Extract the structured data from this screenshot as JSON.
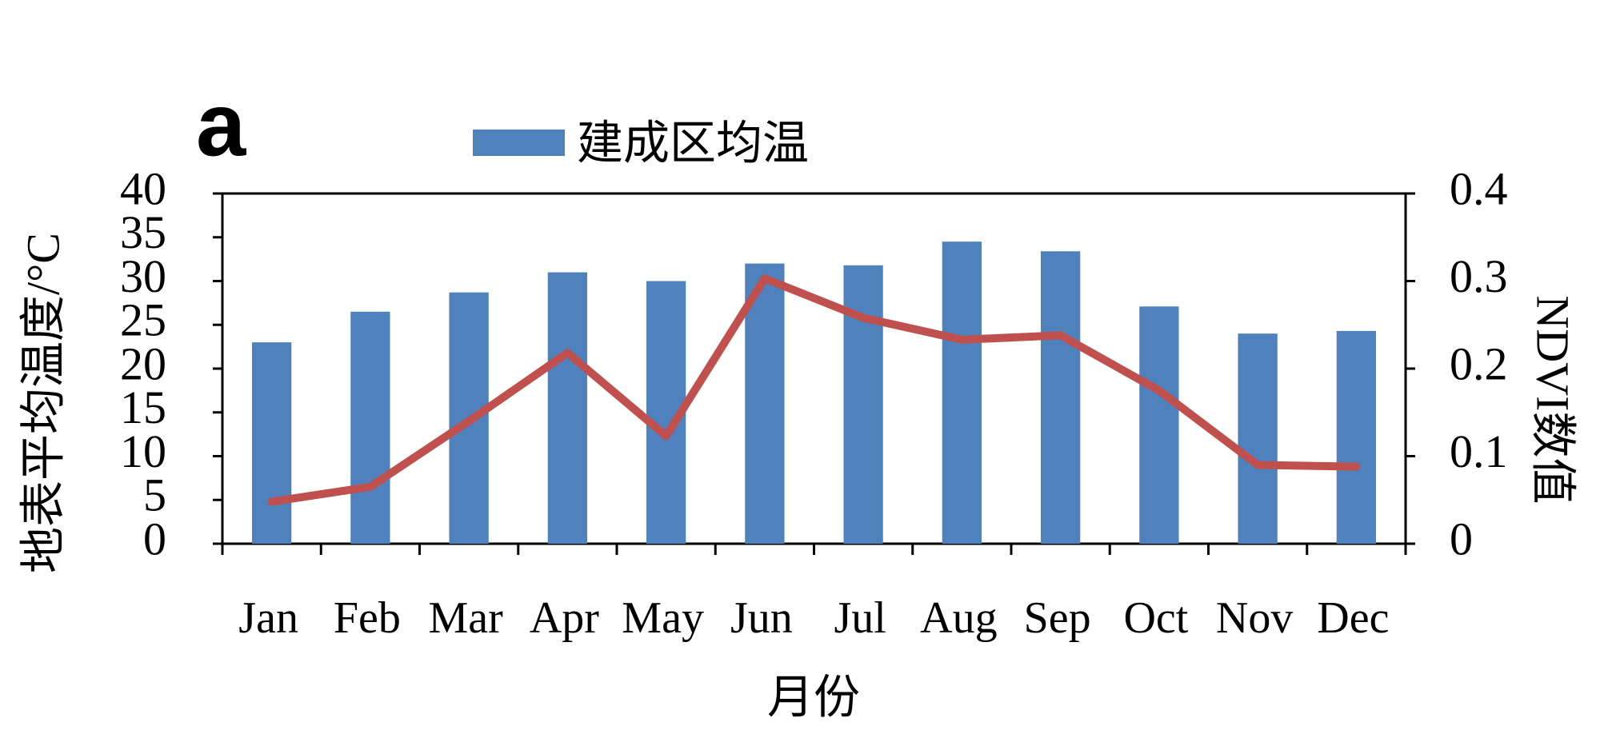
{
  "chart_data": {
    "type": "bar",
    "panel_label": "a",
    "x_label": "月份",
    "y_label": "地表平均温度/°C",
    "y2_label": "NDVI数值",
    "categories": [
      "Jan",
      "Feb",
      "Mar",
      "Apr",
      "May",
      "Jun",
      "Jul",
      "Aug",
      "Sep",
      "Oct",
      "Nov",
      "Dec"
    ],
    "series": [
      {
        "name": "建成区均温",
        "type": "bar",
        "color": "#4f81bd",
        "values": [
          23,
          26.5,
          28.7,
          31,
          30,
          32,
          31.8,
          34.5,
          33.4,
          27.1,
          24,
          24.3
        ]
      },
      {
        "type": "line",
        "axis": "y2",
        "color": "#c0504d",
        "values": [
          0.048,
          0.065,
          0.14,
          0.218,
          0.123,
          0.303,
          0.258,
          0.233,
          0.238,
          0.175,
          0.09,
          0.088
        ]
      }
    ],
    "ylim": [
      0,
      40
    ],
    "yticks": [
      0,
      5,
      10,
      15,
      20,
      25,
      30,
      35,
      40
    ],
    "y2lim": [
      0,
      0.4
    ],
    "y2ticks": [
      0,
      0.1,
      0.2,
      0.3,
      0.4
    ],
    "grid": false,
    "legend": "top"
  }
}
